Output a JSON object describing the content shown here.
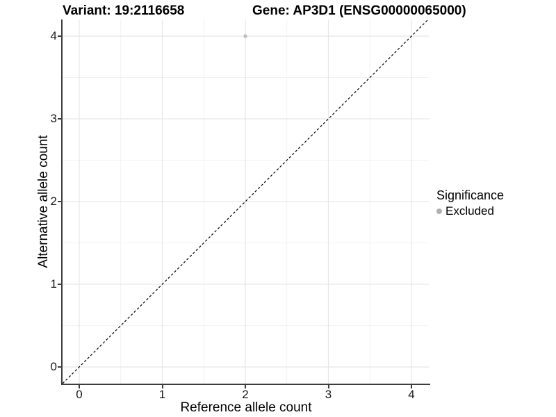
{
  "chart_data": {
    "type": "scatter",
    "title_left": "Variant: 19:2116658",
    "title_right": "Gene: AP3D1 (ENSG00000065000)",
    "xlabel": "Reference allele count",
    "ylabel": "Alternative allele count",
    "xlim": [
      -0.2,
      4.2
    ],
    "ylim": [
      -0.2,
      4.2
    ],
    "x_ticks": [
      0,
      1,
      2,
      3,
      4
    ],
    "y_ticks": [
      0,
      1,
      2,
      3,
      4
    ],
    "grid": {
      "major": true,
      "minor": true,
      "major_color": "#e7e7e7",
      "minor_color": "#f2f2f2"
    },
    "identity_line": {
      "style": "dashed",
      "color": "#000000",
      "x1": -0.2,
      "y1": -0.2,
      "x2": 4.2,
      "y2": 4.2
    },
    "series": [
      {
        "name": "Excluded",
        "color": "#bdbdbd",
        "points": [
          [
            2,
            4
          ]
        ]
      }
    ],
    "legend": {
      "title": "Significance",
      "position": "right",
      "items": [
        {
          "label": "Excluded",
          "color": "#b0b0b0",
          "marker": "circle-icon"
        }
      ]
    }
  }
}
